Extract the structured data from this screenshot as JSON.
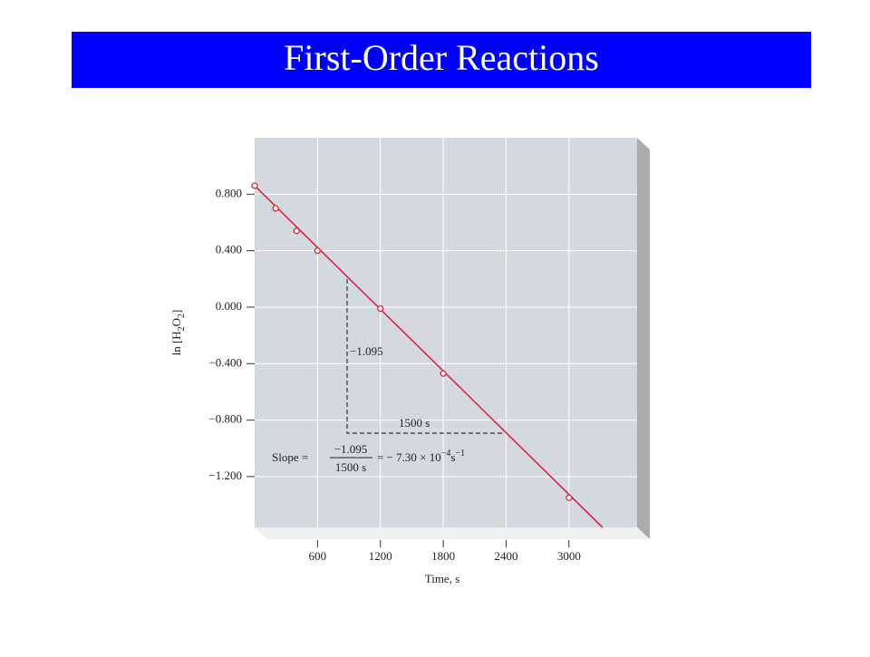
{
  "header": {
    "title": "First-Order Reactions"
  },
  "chart_data": {
    "type": "scatter",
    "x_label": "Time, s",
    "y_label_parts": [
      "ln [H",
      "2",
      "O",
      "2",
      "]"
    ],
    "x": [
      0,
      200,
      400,
      600,
      1200,
      1800,
      3000
    ],
    "series": [
      {
        "color": "#d9263c",
        "values": [
          0.86,
          0.7,
          0.54,
          0.4,
          -0.01,
          -0.47,
          -1.35
        ]
      }
    ],
    "trendline": {
      "x": [
        0,
        3320
      ],
      "values": [
        0.86,
        -1.56
      ],
      "color": "#d9263c"
    },
    "xlim": [
      0,
      3650
    ],
    "ylim": [
      -1.56,
      1.2
    ],
    "xticks": [
      600,
      1200,
      1800,
      2400,
      3000
    ],
    "yticks": [
      {
        "value": 0.8,
        "label": "0.800"
      },
      {
        "value": 0.4,
        "label": "0.400"
      },
      {
        "value": 0,
        "label": "0.000"
      },
      {
        "value": -0.4,
        "label": "−0.400"
      },
      {
        "value": -0.8,
        "label": "−0.800"
      },
      {
        "value": -1.2,
        "label": "−1.200"
      }
    ],
    "grid": true,
    "annotations": {
      "rise": "−1.095",
      "run": "1500 s",
      "slope_label": "Slope =",
      "slope_num": "−1.095",
      "slope_den": "1500 s",
      "slope_result": "= − 7.30 × 10",
      "slope_exp": "−4",
      "slope_unit": "s",
      "slope_unit_exp": "−1"
    }
  }
}
